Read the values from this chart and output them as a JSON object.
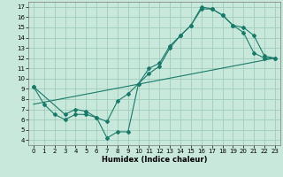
{
  "title": "",
  "xlabel": "Humidex (Indice chaleur)",
  "xlim": [
    -0.5,
    23.5
  ],
  "ylim": [
    3.5,
    17.5
  ],
  "xticks": [
    0,
    1,
    2,
    3,
    4,
    5,
    6,
    7,
    8,
    9,
    10,
    11,
    12,
    13,
    14,
    15,
    16,
    17,
    18,
    19,
    20,
    21,
    22,
    23
  ],
  "yticks": [
    4,
    5,
    6,
    7,
    8,
    9,
    10,
    11,
    12,
    13,
    14,
    15,
    16,
    17
  ],
  "bg_color": "#c8e8dc",
  "grid_color": "#a0ccbb",
  "line_color": "#1a7a6a",
  "line1_x": [
    0,
    1,
    2,
    3,
    4,
    5,
    6,
    7,
    8,
    9,
    10,
    11,
    12,
    13,
    14,
    15,
    16,
    17,
    18,
    19,
    20,
    21,
    22,
    23
  ],
  "line1_y": [
    9.2,
    7.5,
    6.5,
    6.0,
    6.5,
    6.5,
    6.2,
    5.8,
    7.8,
    8.5,
    9.5,
    10.5,
    11.2,
    13.0,
    14.2,
    15.2,
    16.8,
    16.8,
    16.2,
    15.2,
    14.5,
    12.5,
    12.0,
    12.0
  ],
  "line2_x": [
    0,
    3,
    4,
    5,
    6,
    7,
    8,
    9,
    10,
    11,
    12,
    13,
    14,
    15,
    16,
    17,
    18,
    19,
    20,
    21,
    22,
    23
  ],
  "line2_y": [
    9.2,
    6.5,
    7.0,
    6.8,
    6.2,
    4.2,
    4.8,
    4.8,
    9.5,
    11.0,
    11.5,
    13.2,
    14.2,
    15.2,
    17.0,
    16.8,
    16.2,
    15.2,
    15.0,
    14.2,
    12.2,
    12.0
  ],
  "line3_x": [
    0,
    23
  ],
  "line3_y": [
    7.5,
    12.0
  ],
  "figsize": [
    3.2,
    2.0
  ],
  "dpi": 100,
  "marker_size": 2.0,
  "linewidth": 0.8,
  "tick_fontsize": 5.0,
  "xlabel_fontsize": 6.0
}
